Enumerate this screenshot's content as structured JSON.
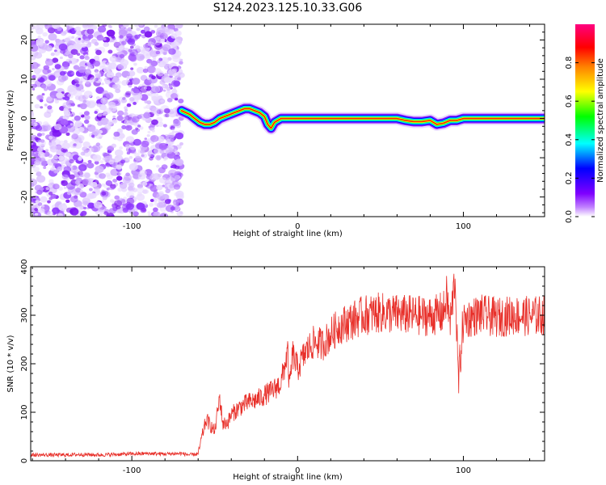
{
  "title": "S124.2023.125.10.33.G06",
  "chart_data": [
    {
      "type": "heatmap",
      "name": "spectrogram",
      "xlabel": "Height of straight line (km)",
      "ylabel": "Frequency (Hz)",
      "xlim": [
        -161,
        149
      ],
      "ylim": [
        -25,
        24
      ],
      "xticks": [
        -100,
        0,
        100
      ],
      "yticks": [
        -20,
        -10,
        0,
        10,
        20
      ],
      "colorbar": {
        "label": "Normalized spectral amplitude",
        "range": [
          0.0,
          1.0
        ],
        "ticks": [
          0.0,
          0.2,
          0.4,
          0.6,
          0.8
        ],
        "colormap": [
          "#ffffff",
          "#c080ff",
          "#7f00ff",
          "#0000ff",
          "#00ffff",
          "#00ff00",
          "#ffff00",
          "#ff8000",
          "#ff0000",
          "#ff0080"
        ]
      },
      "noise_region": {
        "x_range": [
          -161,
          -70
        ],
        "y_range": [
          -25,
          24
        ]
      },
      "signal_track": {
        "x": [
          -70,
          -65,
          -62,
          -59,
          -56,
          -53,
          -50,
          -47,
          -44,
          -41,
          -38,
          -35,
          -32,
          -29,
          -26,
          -23,
          -20,
          -18,
          -16,
          -14,
          -10,
          -5,
          0,
          10,
          20,
          30,
          40,
          50,
          60,
          65,
          70,
          75,
          80,
          84,
          88,
          92,
          96,
          100,
          110,
          120,
          130,
          149
        ],
        "y": [
          2.0,
          1.0,
          0.0,
          -1.0,
          -1.5,
          -1.5,
          -1.0,
          0.0,
          0.5,
          1.0,
          1.5,
          2.0,
          2.5,
          2.5,
          2.0,
          1.5,
          0.5,
          -1.5,
          -2.5,
          -1.0,
          0.0,
          0.0,
          0.0,
          0.0,
          0.0,
          0.0,
          0.0,
          0.0,
          0.0,
          -0.5,
          -0.8,
          -0.8,
          -0.5,
          -1.5,
          -1.2,
          -0.5,
          -0.5,
          0.0,
          0.0,
          0.0,
          0.0,
          0.0
        ]
      }
    },
    {
      "type": "line",
      "name": "snr",
      "xlabel": "Height of straight line (km)",
      "ylabel": "SNR (10 * v/v)",
      "xlim": [
        -161,
        149
      ],
      "ylim": [
        0,
        400
      ],
      "xticks": [
        -100,
        0,
        100
      ],
      "yticks": [
        0,
        100,
        200,
        300,
        400
      ],
      "color": "#e8302a",
      "series": [
        {
          "x": [
            -161,
            -150,
            -140,
            -130,
            -120,
            -110,
            -100,
            -90,
            -80,
            -70,
            -65,
            -60,
            -57,
            -55,
            -52,
            -50,
            -47,
            -45,
            -42,
            -40,
            -35,
            -30,
            -25,
            -20,
            -15,
            -10,
            -6,
            -5,
            -3,
            0,
            5,
            10,
            15,
            20,
            25,
            30,
            40,
            50,
            60,
            70,
            80,
            88,
            90,
            92,
            95,
            97,
            100,
            110,
            120,
            130,
            140,
            149
          ],
          "y": [
            12,
            12,
            12,
            13,
            12,
            13,
            14,
            15,
            14,
            15,
            12,
            14,
            60,
            85,
            70,
            60,
            130,
            75,
            80,
            95,
            110,
            120,
            125,
            135,
            145,
            160,
            225,
            150,
            220,
            190,
            225,
            245,
            240,
            260,
            278,
            285,
            300,
            305,
            302,
            300,
            298,
            305,
            340,
            280,
            380,
            160,
            290,
            302,
            295,
            300,
            298,
            300
          ]
        }
      ]
    }
  ]
}
